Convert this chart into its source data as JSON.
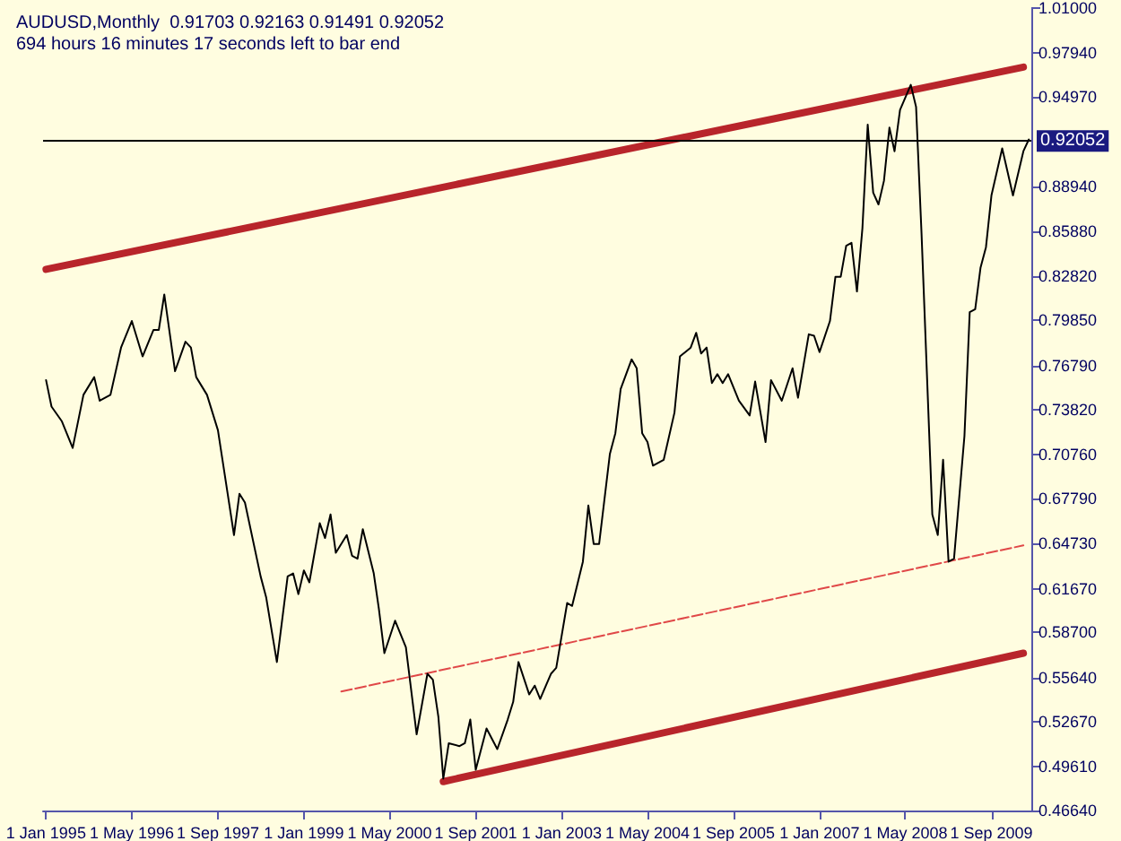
{
  "chart_data": {
    "type": "line",
    "title": "AUDUSD,Monthly  0.91703 0.92163 0.91491 0.92052",
    "subtitle": "694 hours 16 minutes 17 seconds left to bar end",
    "series": [
      {
        "color": "#000000",
        "x": [
          "1995-01",
          "1995-02",
          "1995-04",
          "1995-06",
          "1995-08",
          "1995-10",
          "1995-11",
          "1996-01",
          "1996-03",
          "1996-05",
          "1996-07",
          "1996-09",
          "1996-10",
          "1996-11",
          "1997-01",
          "1997-03",
          "1997-04",
          "1997-05",
          "1997-07",
          "1997-09",
          "1997-12",
          "1998-01",
          "1998-02",
          "1998-05",
          "1998-06",
          "1998-08",
          "1998-10",
          "1998-11",
          "1998-12",
          "1999-01",
          "1999-02",
          "1999-04",
          "1999-05",
          "1999-06",
          "1999-07",
          "1999-09",
          "1999-10",
          "1999-11",
          "1999-12",
          "2000-02",
          "2000-03",
          "2000-04",
          "2000-06",
          "2000-08",
          "2000-10",
          "2000-12",
          "2001-01",
          "2001-02",
          "2001-03",
          "2001-04",
          "2001-06",
          "2001-07",
          "2001-08",
          "2001-09",
          "2001-11",
          "2002-01",
          "2002-03",
          "2002-04",
          "2002-05",
          "2002-07",
          "2002-08",
          "2002-09",
          "2002-11",
          "2002-12",
          "2003-02",
          "2003-03",
          "2003-05",
          "2003-06",
          "2003-07",
          "2003-08",
          "2003-10",
          "2003-11",
          "2003-12",
          "2004-02",
          "2004-03",
          "2004-04",
          "2004-05",
          "2004-06",
          "2004-08",
          "2004-10",
          "2004-11",
          "2005-01",
          "2005-02",
          "2005-03",
          "2005-04",
          "2005-05",
          "2005-06",
          "2005-07",
          "2005-08",
          "2005-10",
          "2005-12",
          "2006-01",
          "2006-03",
          "2006-04",
          "2006-06",
          "2006-08",
          "2006-09",
          "2006-11",
          "2006-12",
          "2007-01",
          "2007-03",
          "2007-04",
          "2007-05",
          "2007-06",
          "2007-07",
          "2007-08",
          "2007-09",
          "2007-10",
          "2007-11",
          "2007-12",
          "2008-01",
          "2008-02",
          "2008-03",
          "2008-04",
          "2008-06",
          "2008-07",
          "2008-08",
          "2008-10",
          "2008-11",
          "2008-12",
          "2009-01",
          "2009-02",
          "2009-04",
          "2009-05",
          "2009-06",
          "2009-07",
          "2009-08",
          "2009-09",
          "2009-11",
          "2010-01",
          "2010-03",
          "2010-04"
        ],
        "values": [
          0.758,
          0.74,
          0.73,
          0.712,
          0.748,
          0.76,
          0.744,
          0.748,
          0.78,
          0.798,
          0.774,
          0.792,
          0.792,
          0.816,
          0.764,
          0.784,
          0.78,
          0.76,
          0.748,
          0.724,
          0.653,
          0.681,
          0.675,
          0.625,
          0.611,
          0.567,
          0.625,
          0.627,
          0.613,
          0.629,
          0.621,
          0.661,
          0.651,
          0.667,
          0.641,
          0.653,
          0.639,
          0.637,
          0.657,
          0.627,
          0.603,
          0.573,
          0.595,
          0.577,
          0.518,
          0.559,
          0.555,
          0.53,
          0.488,
          0.512,
          0.51,
          0.512,
          0.528,
          0.494,
          0.522,
          0.508,
          0.528,
          0.54,
          0.567,
          0.545,
          0.551,
          0.542,
          0.559,
          0.563,
          0.607,
          0.605,
          0.635,
          0.673,
          0.647,
          0.647,
          0.708,
          0.722,
          0.752,
          0.772,
          0.766,
          0.722,
          0.716,
          0.7,
          0.704,
          0.736,
          0.774,
          0.78,
          0.79,
          0.776,
          0.78,
          0.756,
          0.762,
          0.756,
          0.762,
          0.744,
          0.734,
          0.757,
          0.716,
          0.758,
          0.744,
          0.766,
          0.746,
          0.789,
          0.788,
          0.777,
          0.798,
          0.828,
          0.828,
          0.849,
          0.851,
          0.818,
          0.861,
          0.931,
          0.885,
          0.877,
          0.893,
          0.929,
          0.913,
          0.941,
          0.958,
          0.943,
          0.857,
          0.667,
          0.653,
          0.704,
          0.635,
          0.637,
          0.72,
          0.804,
          0.806,
          0.834,
          0.848,
          0.883,
          0.915,
          0.883,
          0.913,
          0.921
        ]
      },
      {
        "color": "#b8252b",
        "x": [
          "1995-01",
          "2010-03"
        ],
        "values": [
          0.833,
          0.97
        ]
      },
      {
        "color": "#b8252b",
        "x": [
          "2001-03",
          "2010-03"
        ],
        "values": [
          0.486,
          0.573
        ]
      },
      {
        "color": "#e04848",
        "line_style": "dashed",
        "x": [
          "1999-08",
          "2010-03"
        ],
        "values": [
          0.547,
          0.646
        ]
      }
    ],
    "xlim": [
      "1994-12-15",
      "2010-04-15"
    ],
    "xticks": [
      {
        "value": "1995-01",
        "label": "1 Jan 1995"
      },
      {
        "value": "1996-05",
        "label": "1 May 1996"
      },
      {
        "value": "1997-09",
        "label": "1 Sep 1997"
      },
      {
        "value": "1999-01",
        "label": "1 Jan 1999"
      },
      {
        "value": "2000-05",
        "label": "1 May 2000"
      },
      {
        "value": "2001-09",
        "label": "1 Sep 2001"
      },
      {
        "value": "2003-01",
        "label": "1 Jan 2003"
      },
      {
        "value": "2004-05",
        "label": "1 May 2004"
      },
      {
        "value": "2005-09",
        "label": "1 Sep 2005"
      },
      {
        "value": "2007-01",
        "label": "1 Jan 2007"
      },
      {
        "value": "2008-05",
        "label": "1 May 2008"
      },
      {
        "value": "2009-09",
        "label": "1 Sep 2009"
      }
    ],
    "ylim": [
      0.4664,
      1.01
    ],
    "yticks": [
      {
        "value": 0.4664,
        "label": "0.46640"
      },
      {
        "value": 0.4961,
        "label": "0.49610"
      },
      {
        "value": 0.5267,
        "label": "0.52670"
      },
      {
        "value": 0.5564,
        "label": "0.55640"
      },
      {
        "value": 0.587,
        "label": "0.58700"
      },
      {
        "value": 0.6167,
        "label": "0.61670"
      },
      {
        "value": 0.6473,
        "label": "0.64730"
      },
      {
        "value": 0.6779,
        "label": "0.67790"
      },
      {
        "value": 0.7076,
        "label": "0.70760"
      },
      {
        "value": 0.7382,
        "label": "0.73820"
      },
      {
        "value": 0.7679,
        "label": "0.76790"
      },
      {
        "value": 0.7985,
        "label": "0.79850"
      },
      {
        "value": 0.8282,
        "label": "0.82820"
      },
      {
        "value": 0.8588,
        "label": "0.85880"
      },
      {
        "value": 0.8894,
        "label": "0.88940"
      },
      {
        "value": 0.9497,
        "label": "0.94970"
      },
      {
        "value": 0.9794,
        "label": "0.97940"
      },
      {
        "value": 1.01,
        "label": "1.01000"
      }
    ],
    "ref_lines": [
      {
        "axis": "y",
        "value": 0.92052,
        "label": "0.92052",
        "color": "#000000"
      }
    ],
    "marker": "none",
    "line_style": "solid",
    "grid": false
  }
}
